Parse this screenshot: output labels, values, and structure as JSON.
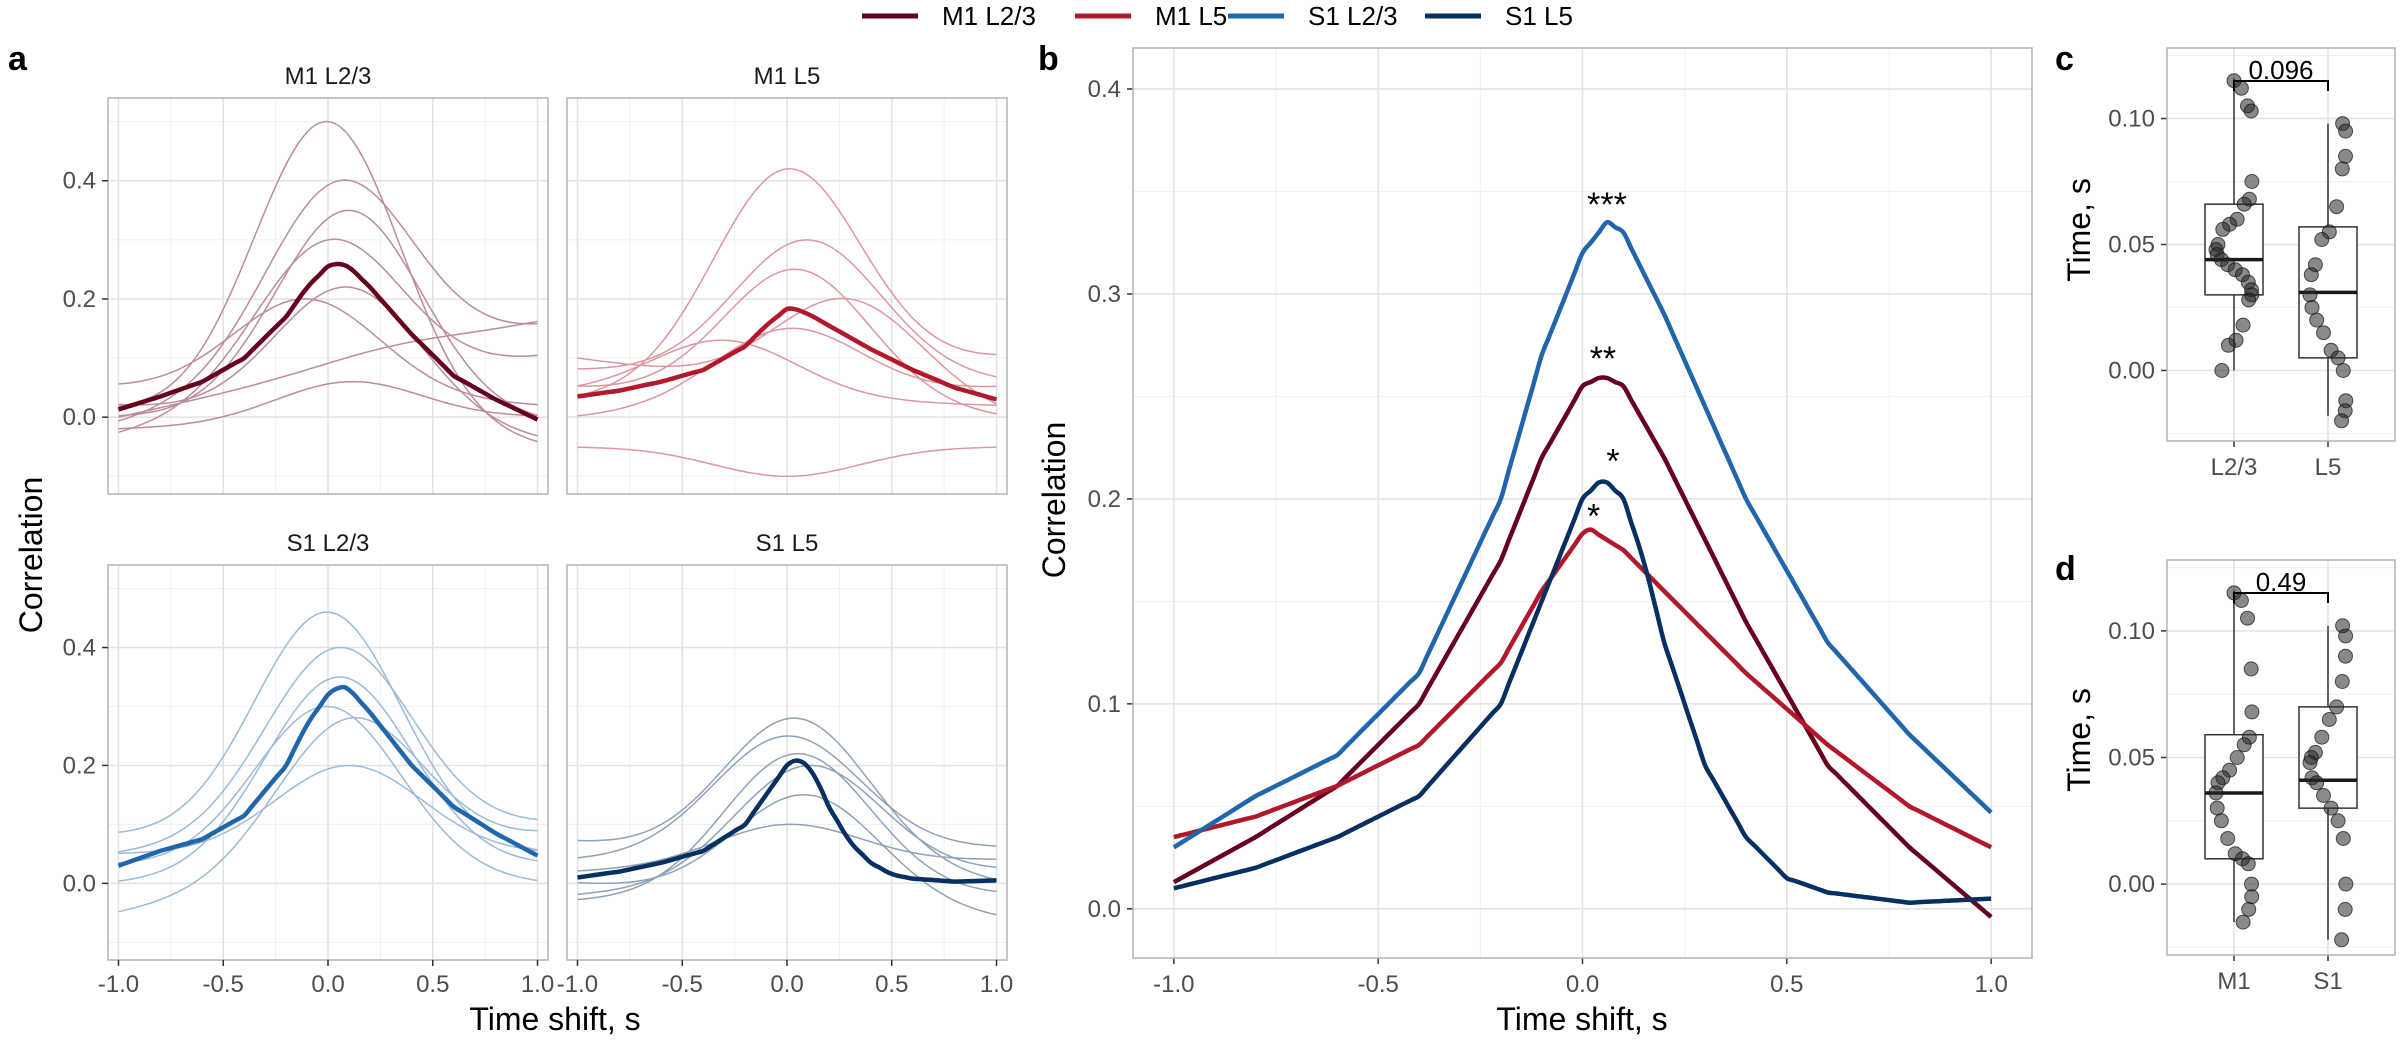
{
  "legend": [
    {
      "label": "M1 L2/3",
      "color": "#67001f"
    },
    {
      "label": "M1 L5",
      "color": "#b2182b"
    },
    {
      "label": "S1 L2/3",
      "color": "#2166ac"
    },
    {
      "label": "S1 L5",
      "color": "#053061"
    }
  ],
  "panel_letters": {
    "a": "a",
    "b": "b",
    "c": "c",
    "d": "d"
  },
  "axis_titles": {
    "a_y": "Correlation",
    "a_x": "Time shift, s",
    "b_y": "Correlation",
    "b_x": "Time shift, s",
    "c_y": "Time, s",
    "d_y": "Time, s"
  },
  "chart_data": [
    {
      "id": "a",
      "type": "line",
      "facets": [
        "M1 L2/3",
        "M1 L5",
        "S1 L2/3",
        "S1 L5"
      ],
      "xlabel": "Time shift, s",
      "ylabel": "Correlation",
      "xlim": [
        -1.05,
        1.05
      ],
      "ylim": [
        -0.13,
        0.54
      ],
      "xticks": [
        "-1.0",
        "-0.5",
        "0.0",
        "0.5",
        "1.0"
      ],
      "yticks": [
        "0.0",
        "0.2",
        "0.4"
      ],
      "grid": true,
      "mean_peaks": {
        "M1 L2/3": 0.26,
        "M1 L5": 0.185,
        "S1 L2/3": 0.335,
        "S1 L5": 0.21
      },
      "individual_traces": {
        "M1 L2/3": [
          {
            "start": 0.01,
            "peak": 0.5,
            "peak_t": 0.0,
            "end": -0.05
          },
          {
            "start": -0.01,
            "peak": 0.4,
            "peak_t": 0.05,
            "end": 0.15
          },
          {
            "start": 0.0,
            "peak": 0.35,
            "peak_t": 0.1,
            "end": -0.01
          },
          {
            "start": -0.03,
            "peak": 0.3,
            "peak_t": 0.0,
            "end": 0.1
          },
          {
            "start": 0.02,
            "peak": 0.22,
            "peak_t": 0.1,
            "end": -0.04
          },
          {
            "start": 0.05,
            "peak": 0.2,
            "peak_t": -0.1,
            "end": 0.02
          },
          {
            "start": 0.0,
            "peak": 0.12,
            "peak_t": 0.3,
            "end": 0.16
          },
          {
            "start": -0.02,
            "peak": 0.06,
            "peak_t": 0.1,
            "end": 0.0
          }
        ],
        "M1 L5": [
          {
            "start": 0.03,
            "peak": 0.42,
            "peak_t": 0.0,
            "end": 0.1
          },
          {
            "start": 0.08,
            "peak": 0.3,
            "peak_t": 0.1,
            "end": 0.06
          },
          {
            "start": 0.05,
            "peak": 0.25,
            "peak_t": 0.05,
            "end": 0.0
          },
          {
            "start": 0.0,
            "peak": 0.15,
            "peak_t": 0.0,
            "end": 0.05
          },
          {
            "start": 0.1,
            "peak": 0.2,
            "peak_t": 0.3,
            "end": 0.0
          },
          {
            "start": -0.05,
            "peak": -0.1,
            "peak_t": 0.0,
            "end": -0.05
          },
          {
            "start": 0.04,
            "peak": 0.13,
            "peak_t": -0.3,
            "end": 0.02
          }
        ],
        "S1 L2/3": [
          {
            "start": 0.08,
            "peak": 0.46,
            "peak_t": 0.0,
            "end": 0.05
          },
          {
            "start": 0.05,
            "peak": 0.4,
            "peak_t": 0.05,
            "end": 0.1
          },
          {
            "start": 0.0,
            "peak": 0.35,
            "peak_t": 0.05,
            "end": 0.03
          },
          {
            "start": 0.03,
            "peak": 0.3,
            "peak_t": 0.0,
            "end": 0.0
          },
          {
            "start": -0.05,
            "peak": 0.28,
            "peak_t": 0.1,
            "end": 0.08
          },
          {
            "start": 0.05,
            "peak": 0.2,
            "peak_t": 0.1,
            "end": 0.05
          }
        ],
        "S1 L5": [
          {
            "start": 0.07,
            "peak": 0.28,
            "peak_t": 0.05,
            "end": 0.0
          },
          {
            "start": 0.04,
            "peak": 0.25,
            "peak_t": 0.0,
            "end": 0.06
          },
          {
            "start": -0.02,
            "peak": 0.2,
            "peak_t": 0.1,
            "end": 0.02
          },
          {
            "start": 0.0,
            "peak": 0.15,
            "peak_t": 0.1,
            "end": -0.06
          },
          {
            "start": 0.02,
            "peak": 0.1,
            "peak_t": 0.0,
            "end": 0.04
          },
          {
            "start": -0.03,
            "peak": 0.22,
            "peak_t": 0.05,
            "end": -0.02
          }
        ]
      }
    },
    {
      "id": "b",
      "type": "line",
      "xlabel": "Time shift, s",
      "ylabel": "Correlation",
      "xlim": [
        -1.1,
        1.1
      ],
      "ylim": [
        -0.024,
        0.42
      ],
      "xticks": [
        "-1.0",
        "-0.5",
        "0.0",
        "0.5",
        "1.0"
      ],
      "yticks": [
        "0.0",
        "0.1",
        "0.2",
        "0.3",
        "0.4"
      ],
      "grid": true,
      "series": [
        {
          "name": "M1 L2/3",
          "color": "#67001f",
          "x": [
            -1.0,
            -0.8,
            -0.6,
            -0.4,
            -0.2,
            -0.1,
            0.0,
            0.05,
            0.1,
            0.2,
            0.4,
            0.6,
            0.8,
            1.0
          ],
          "y": [
            0.013,
            0.035,
            0.06,
            0.1,
            0.17,
            0.22,
            0.255,
            0.26,
            0.255,
            0.22,
            0.14,
            0.07,
            0.03,
            -0.004
          ]
        },
        {
          "name": "M1 L5",
          "color": "#b2182b",
          "x": [
            -1.0,
            -0.8,
            -0.6,
            -0.4,
            -0.2,
            -0.1,
            0.0,
            0.02,
            0.1,
            0.2,
            0.4,
            0.6,
            0.8,
            1.0
          ],
          "y": [
            0.035,
            0.045,
            0.06,
            0.08,
            0.12,
            0.155,
            0.183,
            0.185,
            0.175,
            0.155,
            0.115,
            0.08,
            0.05,
            0.03
          ]
        },
        {
          "name": "S1 L2/3",
          "color": "#2166ac",
          "x": [
            -1.0,
            -0.8,
            -0.6,
            -0.4,
            -0.2,
            -0.1,
            0.0,
            0.06,
            0.1,
            0.2,
            0.4,
            0.6,
            0.8,
            1.0
          ],
          "y": [
            0.03,
            0.055,
            0.075,
            0.115,
            0.2,
            0.27,
            0.32,
            0.335,
            0.33,
            0.29,
            0.2,
            0.13,
            0.085,
            0.047
          ]
        },
        {
          "name": "S1 L5",
          "color": "#053061",
          "x": [
            -1.0,
            -0.8,
            -0.6,
            -0.4,
            -0.2,
            -0.1,
            0.0,
            0.05,
            0.1,
            0.15,
            0.2,
            0.3,
            0.4,
            0.5,
            0.6,
            0.8,
            1.0
          ],
          "y": [
            0.01,
            0.02,
            0.035,
            0.055,
            0.1,
            0.15,
            0.2,
            0.21,
            0.2,
            0.17,
            0.13,
            0.07,
            0.035,
            0.015,
            0.008,
            0.003,
            0.005
          ]
        }
      ],
      "annotations": [
        {
          "text": "***",
          "series": "S1 L2/3"
        },
        {
          "text": "**",
          "series": "M1 L2/3"
        },
        {
          "text": "*",
          "series": "S1 L5"
        },
        {
          "text": "*",
          "series": "M1 L5"
        }
      ]
    },
    {
      "id": "c",
      "type": "box",
      "categories": [
        "L2/3",
        "L5"
      ],
      "ylabel": "Time, s",
      "ylim": [
        -0.028,
        0.128
      ],
      "yticks": [
        "0.00",
        "0.05",
        "0.10"
      ],
      "p_value": "0.096",
      "boxes": [
        {
          "category": "L2/3",
          "min": 0.0,
          "q1": 0.03,
          "median": 0.044,
          "q3": 0.066,
          "max": 0.116
        },
        {
          "category": "L5",
          "min": -0.018,
          "q1": 0.005,
          "median": 0.031,
          "q3": 0.057,
          "max": 0.098
        }
      ],
      "points": {
        "L2/3": [
          0.115,
          0.112,
          0.105,
          0.103,
          0.075,
          0.068,
          0.066,
          0.06,
          0.058,
          0.056,
          0.05,
          0.048,
          0.046,
          0.044,
          0.042,
          0.04,
          0.038,
          0.035,
          0.032,
          0.03,
          0.028,
          0.018,
          0.012,
          0.01,
          0.0
        ],
        "L5": [
          0.098,
          0.095,
          0.085,
          0.08,
          0.065,
          0.055,
          0.052,
          0.042,
          0.038,
          0.03,
          0.025,
          0.02,
          0.015,
          0.008,
          0.005,
          0.0,
          -0.012,
          -0.016,
          -0.02
        ]
      }
    },
    {
      "id": "d",
      "type": "box",
      "categories": [
        "M1",
        "S1"
      ],
      "ylabel": "Time, s",
      "ylim": [
        -0.028,
        0.128
      ],
      "yticks": [
        "0.00",
        "0.05",
        "0.10"
      ],
      "p_value": "0.49",
      "boxes": [
        {
          "category": "M1",
          "min": -0.015,
          "q1": 0.01,
          "median": 0.036,
          "q3": 0.059,
          "max": 0.116
        },
        {
          "category": "S1",
          "min": -0.022,
          "q1": 0.03,
          "median": 0.041,
          "q3": 0.07,
          "max": 0.102
        }
      ],
      "points": {
        "M1": [
          0.115,
          0.112,
          0.105,
          0.085,
          0.068,
          0.058,
          0.055,
          0.05,
          0.045,
          0.042,
          0.04,
          0.036,
          0.03,
          0.025,
          0.018,
          0.012,
          0.01,
          0.008,
          0.0,
          -0.005,
          -0.01,
          -0.015
        ],
        "S1": [
          0.102,
          0.098,
          0.09,
          0.08,
          0.07,
          0.065,
          0.058,
          0.052,
          0.05,
          0.048,
          0.042,
          0.04,
          0.035,
          0.03,
          0.025,
          0.018,
          0.0,
          -0.01,
          -0.022
        ]
      }
    }
  ]
}
